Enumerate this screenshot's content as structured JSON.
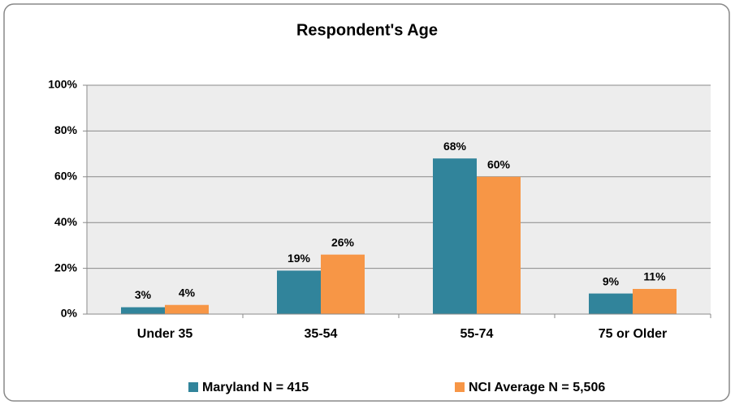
{
  "chart_data": {
    "type": "bar",
    "title": "Respondent's Age",
    "categories": [
      "Under 35",
      "35-54",
      "55-74",
      "75 or Older"
    ],
    "series": [
      {
        "name": "Maryland N = 415",
        "color": "#31849b",
        "values": [
          3,
          19,
          68,
          9
        ],
        "value_labels": [
          "3%",
          "19%",
          "68%",
          "9%"
        ]
      },
      {
        "name": "NCI Average N = 5,506",
        "color": "#f79646",
        "values": [
          4,
          26,
          60,
          11
        ],
        "value_labels": [
          "4%",
          "26%",
          "60%",
          "11%"
        ]
      }
    ],
    "ylim": [
      0,
      100
    ],
    "yticks": [
      {
        "value": 0,
        "label": "0%"
      },
      {
        "value": 20,
        "label": "20%"
      },
      {
        "value": 40,
        "label": "40%"
      },
      {
        "value": 60,
        "label": "60%"
      },
      {
        "value": 80,
        "label": "80%"
      },
      {
        "value": 100,
        "label": "100%"
      }
    ],
    "grid": true,
    "legend": "bottom"
  }
}
